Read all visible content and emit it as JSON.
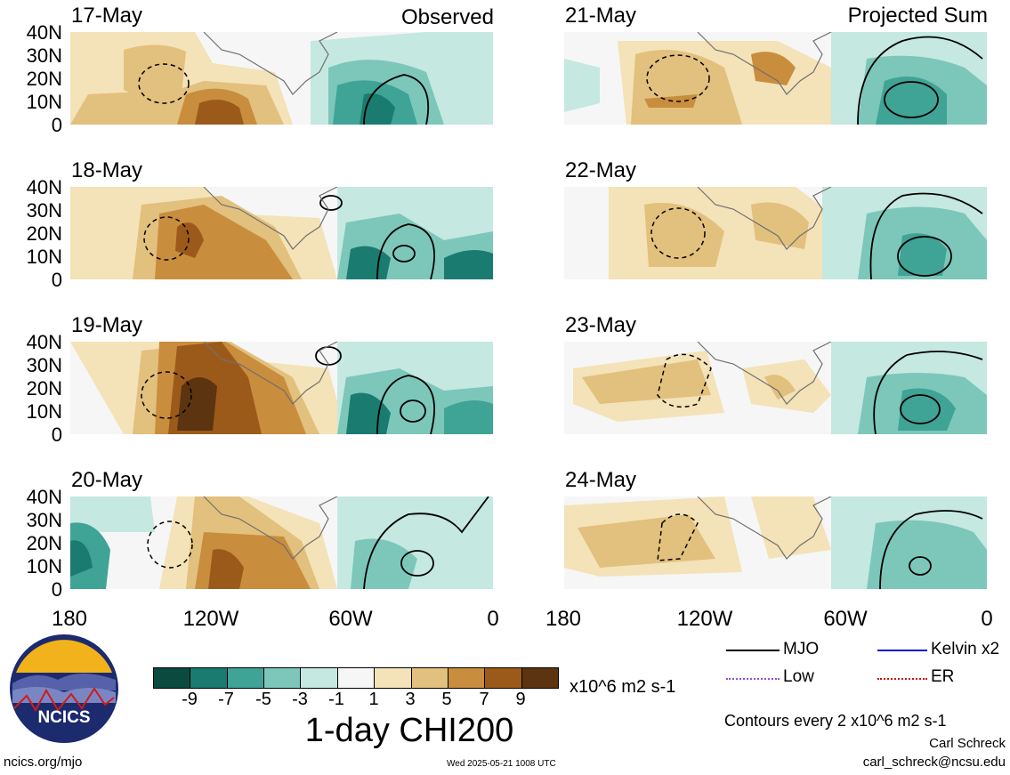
{
  "header": {
    "left_corner": "Observed",
    "right_corner": "Projected Sum"
  },
  "panels": [
    {
      "date": "17-May",
      "column": "observed"
    },
    {
      "date": "18-May",
      "column": "observed"
    },
    {
      "date": "19-May",
      "column": "observed"
    },
    {
      "date": "20-May",
      "column": "observed"
    },
    {
      "date": "21-May",
      "column": "projected"
    },
    {
      "date": "22-May",
      "column": "projected"
    },
    {
      "date": "23-May",
      "column": "projected"
    },
    {
      "date": "24-May",
      "column": "projected"
    }
  ],
  "axes": {
    "y_ticks": [
      "40N",
      "30N",
      "20N",
      "10N",
      "0"
    ],
    "x_ticks": [
      "180",
      "120W",
      "60W",
      "0"
    ]
  },
  "colorbar": {
    "colors": [
      "#0b4a3f",
      "#1a7b70",
      "#3fa396",
      "#7cc7ba",
      "#c5e8e1",
      "#f6f6f6",
      "#f4e2b8",
      "#e2c07d",
      "#c98d3e",
      "#9c5a1a",
      "#5d3410"
    ],
    "labels": [
      "-9",
      "-7",
      "-5",
      "-3",
      "-1",
      "1",
      "3",
      "5",
      "7",
      "9"
    ],
    "units": "x10^6 m2 s-1",
    "title": "1-day CHI200"
  },
  "legend": {
    "items": [
      {
        "label": "MJO",
        "color": "#000000"
      },
      {
        "label": "Kelvin x2",
        "color": "#1010cc"
      },
      {
        "label": "Low",
        "color": "#9a4fd0"
      },
      {
        "label": "ER",
        "color": "#d01010"
      }
    ],
    "contour_note": "Contours every 2 x10^6 m2 s-1"
  },
  "footer": {
    "logo_text": "NCICS",
    "url": "ncics.org/mjo",
    "timestamp": "Wed 2025-05-21 1008 UTC",
    "author": "Carl Schreck",
    "email": "carl_schreck@ncsu.edu"
  }
}
